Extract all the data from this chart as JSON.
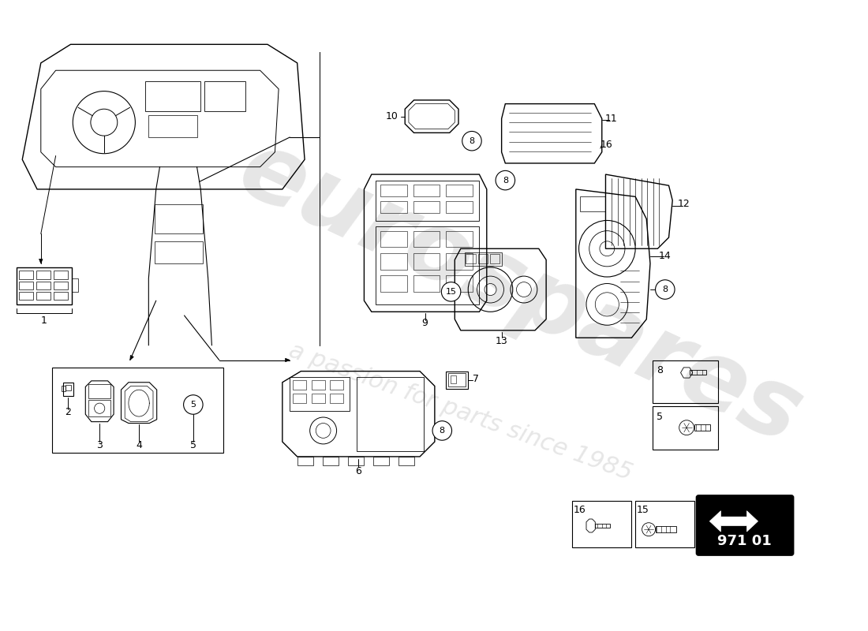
{
  "bg": "#ffffff",
  "part_number": "971 01",
  "watermark1": "eurospares",
  "watermark2": "a passion for parts since 1985",
  "line_color": "#000000",
  "gray": "#888888",
  "light_gray": "#cccccc"
}
